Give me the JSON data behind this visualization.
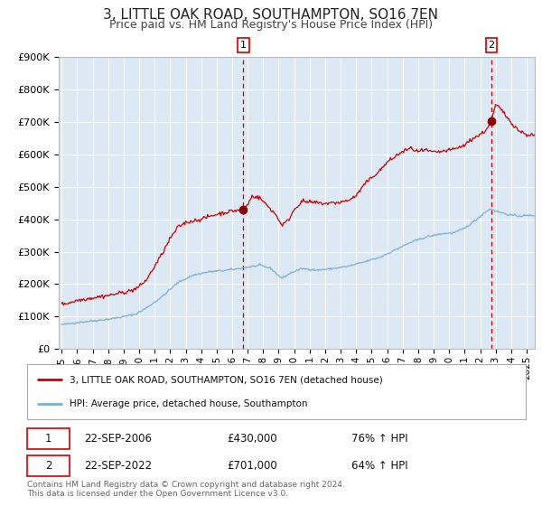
{
  "title": "3, LITTLE OAK ROAD, SOUTHAMPTON, SO16 7EN",
  "subtitle": "Price paid vs. HM Land Registry's House Price Index (HPI)",
  "title_fontsize": 11,
  "subtitle_fontsize": 9,
  "fig_bg_color": "#ffffff",
  "plot_bg_color": "#dce9f5",
  "grid_color": "#ffffff",
  "red_line_color": "#cc0000",
  "blue_line_color": "#7bafd4",
  "ylim": [
    0,
    900000
  ],
  "yticks": [
    0,
    100000,
    200000,
    300000,
    400000,
    500000,
    600000,
    700000,
    800000,
    900000
  ],
  "ytick_labels": [
    "£0",
    "£100K",
    "£200K",
    "£300K",
    "£400K",
    "£500K",
    "£600K",
    "£700K",
    "£800K",
    "£900K"
  ],
  "xlim_start": 1994.8,
  "xlim_end": 2025.5,
  "xticks": [
    1995,
    1996,
    1997,
    1998,
    1999,
    2000,
    2001,
    2002,
    2003,
    2004,
    2005,
    2006,
    2007,
    2008,
    2009,
    2010,
    2011,
    2012,
    2013,
    2014,
    2015,
    2016,
    2017,
    2018,
    2019,
    2020,
    2021,
    2022,
    2023,
    2024,
    2025
  ],
  "transaction1_x": 2006.72,
  "transaction1_y": 430000,
  "transaction1_label": "22-SEP-2006",
  "transaction1_price": "£430,000",
  "transaction1_hpi": "76% ↑ HPI",
  "transaction2_x": 2022.72,
  "transaction2_y": 701000,
  "transaction2_label": "22-SEP-2022",
  "transaction2_price": "£701,000",
  "transaction2_hpi": "64% ↑ HPI",
  "legend_line1": "3, LITTLE OAK ROAD, SOUTHAMPTON, SO16 7EN (detached house)",
  "legend_line2": "HPI: Average price, detached house, Southampton",
  "footer": "Contains HM Land Registry data © Crown copyright and database right 2024.\nThis data is licensed under the Open Government Licence v3.0."
}
